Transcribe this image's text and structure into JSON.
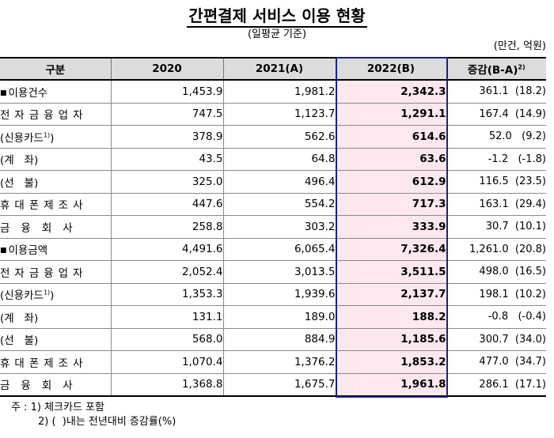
{
  "title": "간편결제 서비스 이용 현황",
  "subtitle": "(일평균 기준)",
  "unit": "(만건, 억원)",
  "header": {
    "category": "구분",
    "y2020": "2020",
    "y2021": "2021(A)",
    "y2022": "2022(B)",
    "diff": "증감(B-A)",
    "diff_sup": "2)"
  },
  "rows": [
    {
      "label": "이용건수",
      "v2020": "1,453.9",
      "v2021": "1,981.2",
      "v2022": "2,342.3",
      "diff": "361.1  (18.2)"
    },
    {
      "label": "전자금융업자",
      "v2020": "747.5",
      "v2021": "1,123.7",
      "v2022": "1,291.1",
      "diff": "167.4  (14.9)"
    },
    {
      "label": "(신용카드",
      "label_sup": "1)",
      "label_end": ")",
      "v2020": "378.9",
      "v2021": "562.6",
      "v2022": "614.6",
      "diff": "52.0   (9.2)"
    },
    {
      "label": "(계   좌)",
      "v2020": "43.5",
      "v2021": "64.8",
      "v2022": "63.6",
      "diff": "-1.2   (-1.8)"
    },
    {
      "label": "(선   불)",
      "v2020": "325.0",
      "v2021": "496.4",
      "v2022": "612.9",
      "diff": "116.5  (23.5)"
    },
    {
      "label": "휴대폰제조사",
      "v2020": "447.6",
      "v2021": "554.2",
      "v2022": "717.3",
      "diff": "163.1  (29.4)"
    },
    {
      "label": "금융회사",
      "v2020": "258.8",
      "v2021": "303.2",
      "v2022": "333.9",
      "diff": "30.7  (10.1)"
    },
    {
      "label": "이용금액",
      "v2020": "4,491.6",
      "v2021": "6,065.4",
      "v2022": "7,326.4",
      "diff": "1,261.0  (20.8)"
    },
    {
      "label": "전자금융업자",
      "v2020": "2,052.4",
      "v2021": "3,013.5",
      "v2022": "3,511.5",
      "diff": "498.0  (16.5)"
    },
    {
      "label": "(신용카드",
      "label_sup": "1)",
      "label_end": ")",
      "v2020": "1,353.3",
      "v2021": "1,939.6",
      "v2022": "2,137.7",
      "diff": "198.1  (10.2)"
    },
    {
      "label": "(계   좌)",
      "v2020": "131.1",
      "v2021": "189.0",
      "v2022": "188.2",
      "diff": "-0.8   (-0.4)"
    },
    {
      "label": "(선   불)",
      "v2020": "568.0",
      "v2021": "884.9",
      "v2022": "1,185.6",
      "diff": "300.7  (34.0)"
    },
    {
      "label": "휴대폰제조사",
      "v2020": "1,070.4",
      "v2021": "1,376.2",
      "v2022": "1,853.2",
      "diff": "477.0  (34.7)"
    },
    {
      "label": "금융회사",
      "v2020": "1,368.8",
      "v2021": "1,675.7",
      "v2022": "1,961.8",
      "diff": "286.1  (17.1)"
    }
  ],
  "notes": [
    "주 : 1) 체크카드 포함",
    "2) (  )내는 전년대비 증감률(%)"
  ]
}
